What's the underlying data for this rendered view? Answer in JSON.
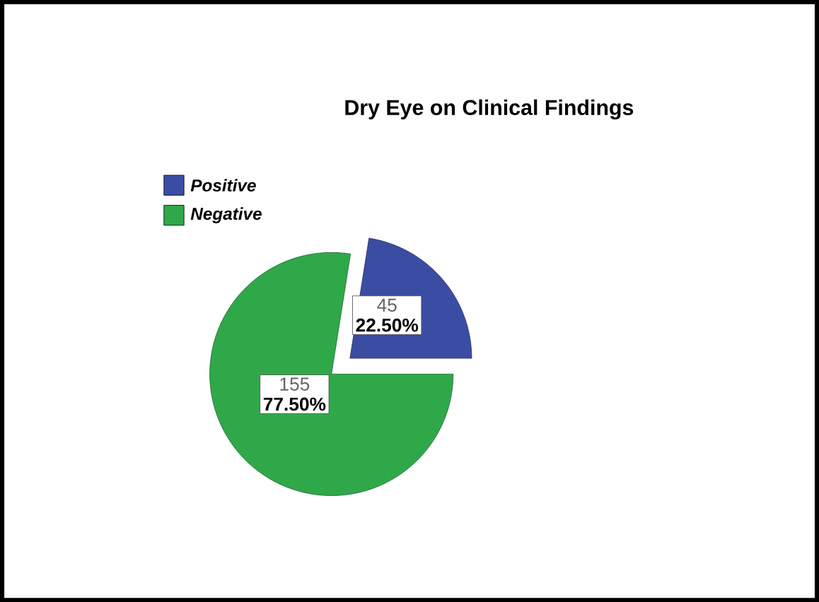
{
  "chart_data": {
    "type": "pie",
    "title": "Dry Eye on Clinical Findings",
    "categories": [
      "Positive",
      "Negative"
    ],
    "values": [
      45,
      155
    ],
    "colors": [
      "#3b4da3",
      "#2fa84a"
    ],
    "data_labels": true,
    "annotations": [
      "22.50%",
      "77.50%"
    ],
    "legend": "top left"
  }
}
